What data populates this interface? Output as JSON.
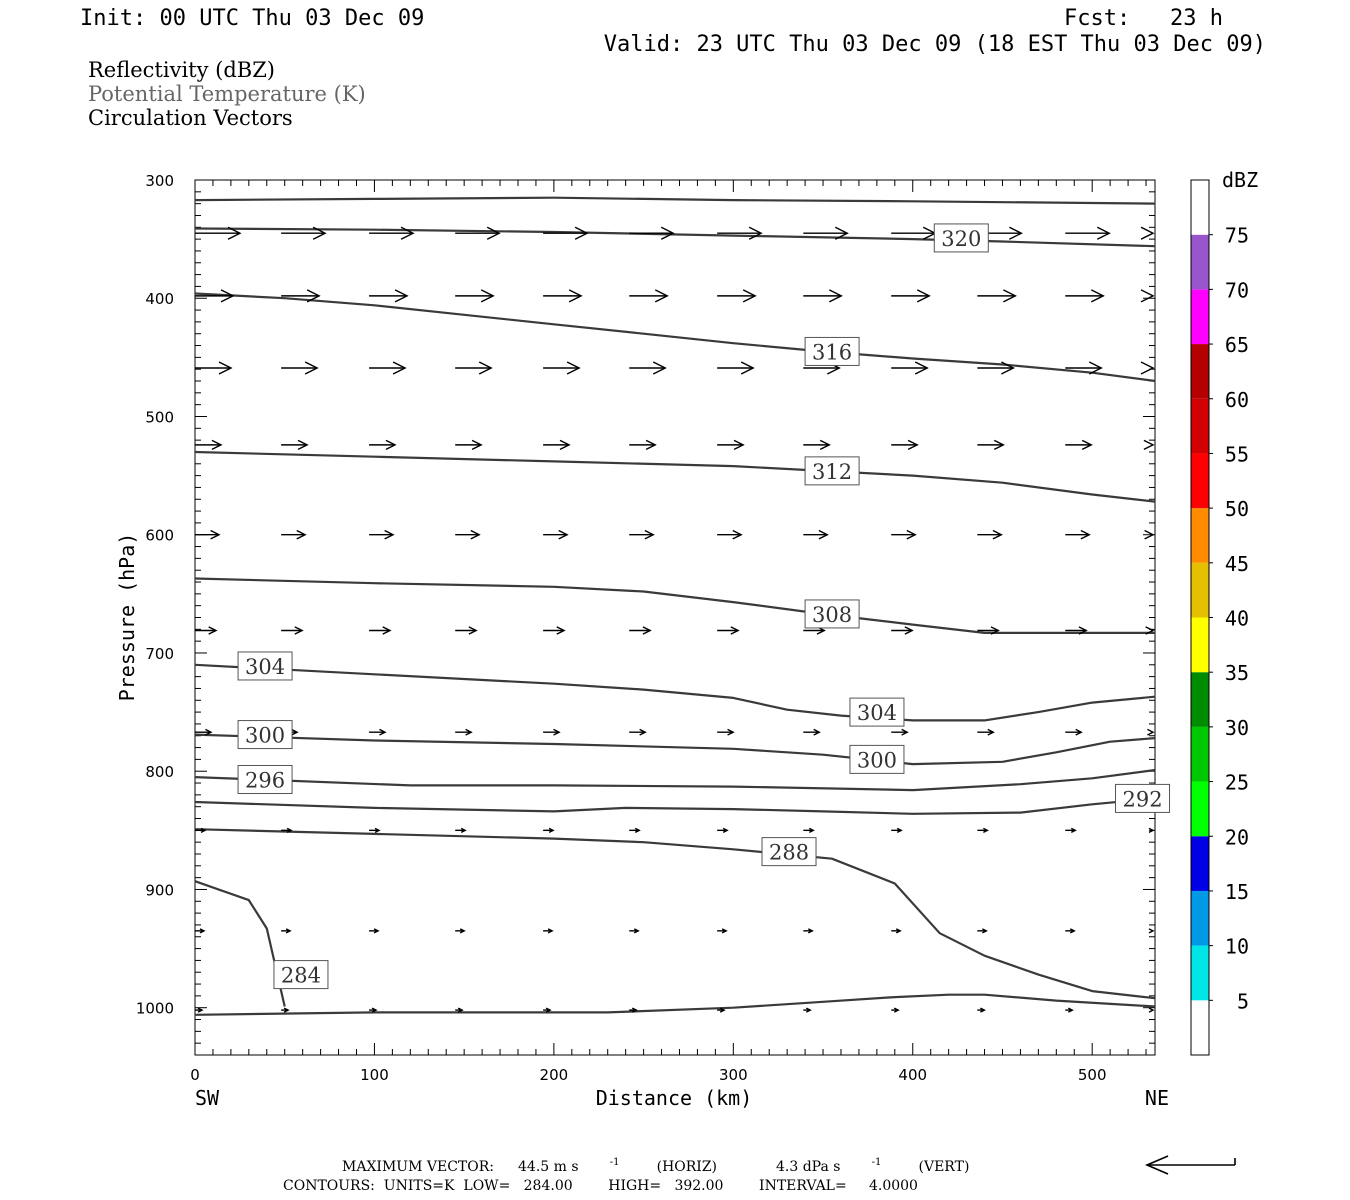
{
  "header": {
    "init": "Init: 00 UTC Thu 03 Dec 09",
    "fcst": "Fcst:   23 h",
    "valid": "Valid: 23 UTC Thu 03 Dec 09 (18 EST Thu 03 Dec 09)",
    "legend_lines": [
      {
        "text": "Reflectivity (dBZ)",
        "color": "#000000"
      },
      {
        "text": "Potential Temperature (K)",
        "color": "#666666"
      },
      {
        "text": "Circulation Vectors",
        "color": "#000000"
      }
    ]
  },
  "chart_data": {
    "type": "cross-section",
    "xlabel": "Distance (km)",
    "ylabel": "Pressure (hPa)",
    "xlim": [
      0,
      535
    ],
    "ylim": [
      300,
      1040
    ],
    "y_inverted": true,
    "x_ticks": [
      0,
      100,
      200,
      300,
      400,
      500
    ],
    "x_tick_labels": [
      "0",
      "100",
      "200",
      "300",
      "400",
      "500"
    ],
    "y_ticks": [
      300,
      400,
      500,
      600,
      700,
      800,
      900,
      1000
    ],
    "y_tick_labels": [
      "300",
      "400",
      "500",
      "600",
      "700",
      "800",
      "900",
      "1000"
    ],
    "left_end_label": "SW",
    "right_end_label": "NE",
    "contour_color": "#3a3a3a",
    "theta_contours": [
      {
        "points": [
          [
            0,
            317
          ],
          [
            100,
            316
          ],
          [
            200,
            315
          ],
          [
            300,
            317
          ],
          [
            400,
            318
          ],
          [
            535,
            320
          ]
        ]
      },
      {
        "points": [
          [
            0,
            341
          ],
          [
            100,
            342
          ],
          [
            200,
            344
          ],
          [
            300,
            347
          ],
          [
            400,
            350
          ],
          [
            450,
            352
          ],
          [
            535,
            356
          ]
        ]
      },
      {
        "points": [
          [
            0,
            396
          ],
          [
            50,
            400
          ],
          [
            100,
            406
          ],
          [
            150,
            414
          ],
          [
            200,
            422
          ],
          [
            250,
            430
          ],
          [
            300,
            438
          ],
          [
            350,
            445
          ],
          [
            400,
            451
          ],
          [
            450,
            456
          ],
          [
            500,
            463
          ],
          [
            535,
            470
          ]
        ]
      },
      {
        "points": [
          [
            0,
            530
          ],
          [
            100,
            534
          ],
          [
            200,
            538
          ],
          [
            300,
            542
          ],
          [
            350,
            546
          ],
          [
            400,
            550
          ],
          [
            450,
            556
          ],
          [
            500,
            566
          ],
          [
            535,
            572
          ]
        ]
      },
      {
        "points": [
          [
            0,
            637
          ],
          [
            100,
            641
          ],
          [
            200,
            644
          ],
          [
            250,
            648
          ],
          [
            300,
            657
          ],
          [
            350,
            667
          ],
          [
            400,
            676
          ],
          [
            440,
            683
          ],
          [
            535,
            683
          ]
        ]
      },
      {
        "points": [
          [
            0,
            710
          ],
          [
            100,
            718
          ],
          [
            200,
            726
          ],
          [
            250,
            731
          ],
          [
            300,
            738
          ],
          [
            330,
            748
          ],
          [
            360,
            753
          ],
          [
            400,
            757
          ],
          [
            440,
            757
          ],
          [
            470,
            750
          ],
          [
            500,
            742
          ],
          [
            535,
            737
          ]
        ]
      },
      {
        "points": [
          [
            0,
            769
          ],
          [
            100,
            774
          ],
          [
            200,
            777
          ],
          [
            300,
            781
          ],
          [
            350,
            786
          ],
          [
            400,
            794
          ],
          [
            450,
            792
          ],
          [
            480,
            784
          ],
          [
            510,
            775
          ],
          [
            535,
            772
          ]
        ]
      },
      {
        "points": [
          [
            0,
            805
          ],
          [
            120,
            812
          ],
          [
            200,
            812
          ],
          [
            300,
            813
          ],
          [
            400,
            816
          ],
          [
            460,
            811
          ],
          [
            500,
            806
          ],
          [
            535,
            799
          ]
        ]
      },
      {
        "points": [
          [
            0,
            826
          ],
          [
            100,
            831
          ],
          [
            200,
            834
          ],
          [
            240,
            831
          ],
          [
            300,
            832
          ],
          [
            350,
            834
          ],
          [
            400,
            836
          ],
          [
            460,
            835
          ],
          [
            500,
            828
          ],
          [
            535,
            823
          ]
        ]
      },
      {
        "points": [
          [
            0,
            849
          ],
          [
            100,
            853
          ],
          [
            200,
            857
          ],
          [
            250,
            860
          ],
          [
            300,
            866
          ],
          [
            355,
            874
          ],
          [
            390,
            895
          ],
          [
            415,
            937
          ],
          [
            440,
            956
          ],
          [
            470,
            972
          ],
          [
            500,
            986
          ],
          [
            535,
            992
          ]
        ]
      },
      {
        "points": [
          [
            0,
            893
          ],
          [
            30,
            909
          ],
          [
            40,
            933
          ],
          [
            50,
            999
          ]
        ]
      },
      {
        "points": [
          [
            0,
            1006
          ],
          [
            100,
            1004
          ],
          [
            200,
            1004
          ],
          [
            230,
            1004
          ],
          [
            300,
            1000
          ],
          [
            350,
            995
          ],
          [
            390,
            991
          ],
          [
            420,
            989
          ],
          [
            440,
            989
          ],
          [
            480,
            994
          ],
          [
            535,
            999
          ]
        ]
      }
    ],
    "contour_labels": [
      {
        "text": "320",
        "x": 412,
        "y": 349
      },
      {
        "text": "316",
        "x": 340,
        "y": 445
      },
      {
        "text": "312",
        "x": 340,
        "y": 546
      },
      {
        "text": "308",
        "x": 340,
        "y": 667
      },
      {
        "text": "304",
        "x": 24,
        "y": 711
      },
      {
        "text": "304",
        "x": 365,
        "y": 750
      },
      {
        "text": "300",
        "x": 24,
        "y": 769
      },
      {
        "text": "300",
        "x": 365,
        "y": 790
      },
      {
        "text": "296",
        "x": 24,
        "y": 807
      },
      {
        "text": "292",
        "x": 513,
        "y": 823
      },
      {
        "text": "288",
        "x": 316,
        "y": 868
      },
      {
        "text": "284",
        "x": 44,
        "y": 972
      }
    ],
    "vector_color": "#000000",
    "vector_x_positions": [
      0,
      48,
      97,
      145,
      194,
      242,
      291,
      339,
      388,
      436,
      485,
      533
    ],
    "vectors": [
      {
        "p": 345,
        "len": [
          45,
          44,
          44,
          44,
          44,
          44,
          44,
          44,
          44,
          44,
          44,
          44
        ]
      },
      {
        "p": 398,
        "len": [
          38,
          38,
          38,
          38,
          38,
          38,
          38,
          38,
          38,
          38,
          38,
          38
        ]
      },
      {
        "p": 459,
        "len": [
          36,
          36,
          36,
          36,
          36,
          36,
          36,
          36,
          36,
          36,
          36,
          36
        ]
      },
      {
        "p": 524,
        "len": [
          26,
          26,
          26,
          26,
          26,
          26,
          26,
          26,
          26,
          26,
          26,
          26
        ]
      },
      {
        "p": 600,
        "len": [
          24,
          24,
          24,
          24,
          24,
          24,
          24,
          24,
          24,
          24,
          24,
          24
        ]
      },
      {
        "p": 681,
        "len": [
          21,
          21,
          21,
          21,
          21,
          21,
          21,
          21,
          21,
          21,
          21,
          21
        ]
      },
      {
        "p": 767,
        "len": [
          16,
          16,
          16,
          16,
          16,
          16,
          16,
          16,
          16,
          16,
          16,
          16
        ]
      },
      {
        "p": 850,
        "len": [
          10,
          10,
          10,
          10,
          10,
          10,
          10,
          10,
          10,
          10,
          10,
          10
        ]
      },
      {
        "p": 935,
        "len": [
          9,
          9,
          9,
          9,
          9,
          9,
          9,
          9,
          9,
          9,
          9,
          9
        ]
      },
      {
        "p": 1002,
        "len": [
          7,
          7,
          7,
          7,
          7,
          7,
          7,
          7,
          7,
          7,
          7,
          7
        ]
      }
    ],
    "colorbar": {
      "unit": "dBZ",
      "levels": [
        5,
        10,
        15,
        20,
        25,
        30,
        35,
        40,
        45,
        50,
        55,
        60,
        65,
        70,
        75
      ],
      "colors": [
        "#ffffff",
        "#00e5e5",
        "#0099e5",
        "#0000e5",
        "#00ff00",
        "#00c800",
        "#008c00",
        "#ffff00",
        "#e5c000",
        "#ff8c00",
        "#ff0000",
        "#d20000",
        "#b40000",
        "#ff00ff",
        "#9955cc",
        "#ffffff"
      ]
    },
    "footer": {
      "max_vector_label": "MAXIMUM VECTOR:",
      "max_vector_horiz": "44.5 m s",
      "max_vector_horiz_unit": "(HORIZ)",
      "max_vector_vert": "4.3 dPa s",
      "max_vector_vert_unit": "(VERT)",
      "superscript": "-1",
      "contours_line": "CONTOURS:  UNITS=K  LOW=   284.00        HIGH=   392.00        INTERVAL=     4.0000"
    }
  }
}
